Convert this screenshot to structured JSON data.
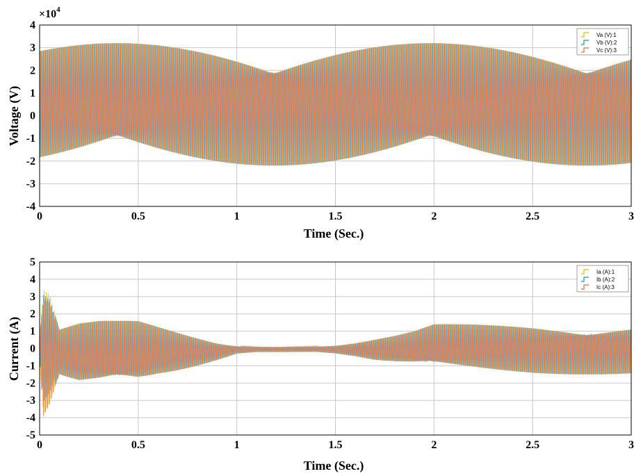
{
  "chart_data": [
    {
      "type": "line",
      "xlabel": "Time (Sec.)",
      "ylabel": "Voltage (V)",
      "exponent_label": "×10",
      "exponent_power": "4",
      "xlim": [
        0,
        3
      ],
      "ylim": [
        -4,
        4
      ],
      "xticks": [
        "0",
        "0.5",
        "1",
        "1.5",
        "2",
        "2.5",
        "3"
      ],
      "xtick_values": [
        0,
        0.5,
        1,
        1.5,
        2,
        2.5,
        3
      ],
      "yticks": [
        "4",
        "3",
        "2",
        "1",
        "0",
        "-1",
        "-2",
        "-3",
        "-4"
      ],
      "ytick_values": [
        4,
        3,
        2,
        1,
        0,
        -1,
        -2,
        -3,
        -4
      ],
      "grid": true,
      "legend_position": "top-right",
      "series": [
        {
          "name": "Va (V):1",
          "color": "#f0c030",
          "envelope_max": 3.2,
          "envelope_min": -2.2
        },
        {
          "name": "Vb (V):2",
          "color": "#3aa0d8",
          "envelope_max": 3.2,
          "envelope_min": -2.2
        },
        {
          "name": "Vc (V):3",
          "color": "#f08050",
          "envelope_max": 3.2,
          "envelope_min": -2.2
        }
      ]
    },
    {
      "type": "line",
      "xlabel": "Time (Sec.)",
      "ylabel": "Current (A)",
      "xlim": [
        0,
        3
      ],
      "ylim": [
        -5,
        5
      ],
      "xticks": [
        "0",
        "0.5",
        "1",
        "1.5",
        "2",
        "2.5",
        "3"
      ],
      "xtick_values": [
        0,
        0.5,
        1,
        1.5,
        2,
        2.5,
        3
      ],
      "yticks": [
        "5",
        "4",
        "3",
        "2",
        "1",
        "0",
        "-1",
        "-2",
        "-3",
        "-4",
        "-5"
      ],
      "ytick_values": [
        5,
        4,
        3,
        2,
        1,
        0,
        -1,
        -2,
        -3,
        -4,
        -5
      ],
      "grid": true,
      "legend_position": "top-right",
      "envelope": {
        "t": [
          0,
          0.02,
          0.05,
          0.1,
          0.2,
          0.3,
          0.4,
          0.5,
          0.6,
          0.7,
          0.8,
          0.9,
          1.0,
          1.1,
          1.2,
          1.3,
          1.4,
          1.5,
          1.6,
          1.7,
          1.8,
          1.9,
          2.0,
          2.5,
          3.0
        ],
        "upper": [
          1.0,
          3.9,
          3.5,
          1.2,
          1.5,
          1.6,
          1.6,
          1.6,
          1.3,
          1.0,
          0.7,
          0.4,
          0.2,
          0.15,
          0.15,
          0.15,
          0.15,
          0.2,
          0.35,
          0.55,
          0.75,
          1.0,
          1.4,
          1.5,
          1.5
        ],
        "lower": [
          -1.0,
          -4.5,
          -3.8,
          -1.8,
          -2.4,
          -2.5,
          -2.5,
          -2.4,
          -1.9,
          -1.5,
          -1.1,
          -0.7,
          -0.3,
          -0.2,
          -0.2,
          -0.2,
          -0.2,
          -0.3,
          -0.5,
          -0.8,
          -1.0,
          -1.2,
          -1.4,
          -1.5,
          -1.5
        ]
      },
      "series": [
        {
          "name": "Ia (A):1",
          "color": "#f0c030"
        },
        {
          "name": "Ib (A):2",
          "color": "#3aa0d8"
        },
        {
          "name": "Ic (A):3",
          "color": "#f08050"
        }
      ]
    }
  ]
}
